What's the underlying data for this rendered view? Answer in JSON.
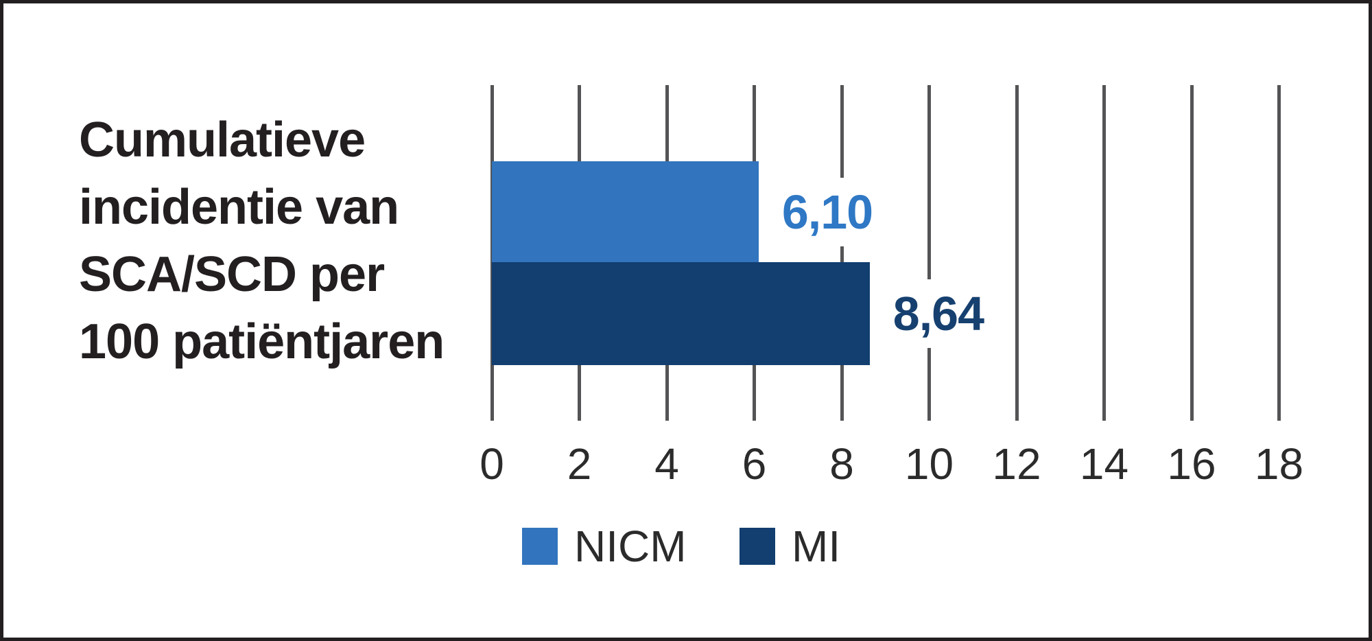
{
  "frame": {
    "background": "#ffffff",
    "border_color": "#231f20"
  },
  "chart_data": {
    "type": "bar",
    "orientation": "horizontal",
    "title": "Cumulatieve incidentie van SCA/SCD per 100 patiëntjaren",
    "title_lines": [
      "Cumulatieve",
      "incidentie van",
      "SCA/SCD per",
      "100 patiëntjaren"
    ],
    "categories": [
      "NICM",
      "MI"
    ],
    "series": [
      {
        "name": "NICM",
        "value": 6.1,
        "display_label": "6,10",
        "bar_color": "#3274bd",
        "label_color": "#2f78c5"
      },
      {
        "name": "MI",
        "value": 8.64,
        "display_label": "8,64",
        "bar_color": "#123e70",
        "label_color": "#16406f"
      }
    ],
    "xlabel": "",
    "ylabel": "",
    "x_axis": {
      "min": 0,
      "max": 18,
      "tick_step": 2,
      "tick_labels": [
        "0",
        "2",
        "4",
        "6",
        "8",
        "10",
        "12",
        "14",
        "16",
        "18"
      ],
      "gridlines": true,
      "gridline_color": "#545456"
    },
    "legend": {
      "position": "bottom",
      "entries": [
        {
          "label": "NICM",
          "color": "#3274bd"
        },
        {
          "label": "MI",
          "color": "#123e70"
        }
      ]
    }
  }
}
